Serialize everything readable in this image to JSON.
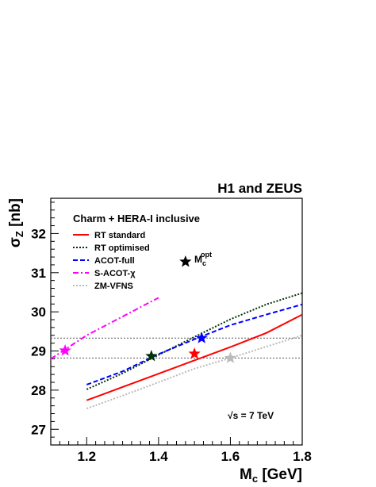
{
  "chart_data": {
    "type": "line",
    "header": "H1 and ZEUS",
    "legend_title": "Charm + HERA-I inclusive",
    "xlabel_main": "M",
    "xlabel_sub": "c",
    "xlabel_unit": " [GeV]",
    "ylabel_main": "σ",
    "ylabel_sub": "Z",
    "ylabel_unit": " [nb]",
    "xlim": [
      1.1,
      1.8
    ],
    "ylim": [
      26.6,
      32.9
    ],
    "xticks": [
      1.2,
      1.4,
      1.6,
      1.8
    ],
    "xtick_labels": [
      "1.2",
      "1.4",
      "1.6",
      "1.8"
    ],
    "yticks": [
      27,
      28,
      29,
      30,
      31,
      32
    ],
    "ytick_labels": [
      "27",
      "28",
      "29",
      "30",
      "31",
      "32"
    ],
    "legend_placement": "top-left",
    "series": [
      {
        "name": "RT standard",
        "color": "#ff0000",
        "dash": "solid",
        "points": [
          [
            1.2,
            27.74
          ],
          [
            1.3,
            28.08
          ],
          [
            1.4,
            28.42
          ],
          [
            1.5,
            28.76
          ],
          [
            1.6,
            29.1
          ],
          [
            1.7,
            29.46
          ],
          [
            1.8,
            29.93
          ]
        ],
        "opt": [
          1.5,
          28.93
        ]
      },
      {
        "name": "RT optimised",
        "color": "#003300",
        "dash": "dotted",
        "points": [
          [
            1.2,
            28.02
          ],
          [
            1.3,
            28.43
          ],
          [
            1.4,
            28.9
          ],
          [
            1.5,
            29.36
          ],
          [
            1.6,
            29.81
          ],
          [
            1.7,
            30.19
          ],
          [
            1.8,
            30.48
          ]
        ],
        "opt": [
          1.38,
          28.87
        ]
      },
      {
        "name": "ACOT-full",
        "color": "#0000ff",
        "dash": "dashed",
        "points": [
          [
            1.2,
            28.14
          ],
          [
            1.3,
            28.48
          ],
          [
            1.4,
            28.92
          ],
          [
            1.5,
            29.3
          ],
          [
            1.6,
            29.66
          ],
          [
            1.7,
            29.93
          ],
          [
            1.8,
            30.19
          ]
        ],
        "opt": [
          1.52,
          29.33
        ]
      },
      {
        "name": "S-ACOT-χ",
        "color": "#ff00ff",
        "dash": "dashdot",
        "points": [
          [
            1.1,
            28.8
          ],
          [
            1.2,
            29.4
          ],
          [
            1.3,
            29.88
          ],
          [
            1.4,
            30.36
          ]
        ],
        "opt": [
          1.14,
          29.01
        ]
      },
      {
        "name": "ZM-VFNS",
        "color": "#bbbbbb",
        "dash": "dotted",
        "points": [
          [
            1.2,
            27.53
          ],
          [
            1.3,
            27.86
          ],
          [
            1.4,
            28.2
          ],
          [
            1.5,
            28.55
          ],
          [
            1.6,
            28.82
          ],
          [
            1.7,
            29.11
          ],
          [
            1.8,
            29.4
          ]
        ],
        "opt": [
          1.6,
          28.82
        ]
      }
    ],
    "hlines": [
      29.33,
      28.82
    ],
    "opt_marker_label": "M",
    "opt_marker_sub": "c",
    "opt_marker_sup": "opt",
    "opt_marker_pos": [
      1.475,
      31.28
    ],
    "energy_sqrt": "√",
    "energy_rest": "s = 7 TeV"
  }
}
